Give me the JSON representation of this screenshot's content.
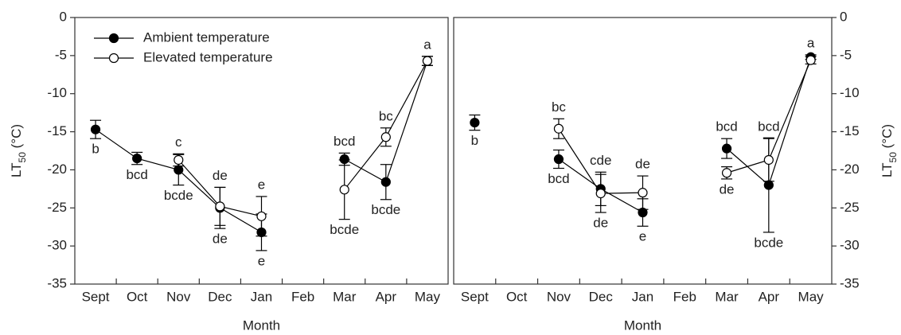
{
  "chart_data": [
    {
      "type": "line",
      "categories": [
        "Sept",
        "Oct",
        "Nov",
        "Dec",
        "Jan",
        "Feb",
        "Mar",
        "Apr",
        "May"
      ],
      "xlabel": "Month",
      "ylabel": [
        "LT",
        "50",
        " (°C)"
      ],
      "yaxis_side": "left",
      "legend": "upper left",
      "ylim": [
        -35,
        0
      ],
      "yticks": [
        0,
        -5,
        -10,
        -15,
        -20,
        -25,
        -30,
        -35
      ],
      "series": [
        {
          "name": "Ambient temperature",
          "color": "#000000",
          "marker_fill": "#000000",
          "values": [
            -14.7,
            -18.5,
            -20,
            -25,
            -28.2,
            null,
            -18.6,
            -21.6,
            -5.7
          ],
          "errors": [
            1.2,
            0.8,
            2,
            2.7,
            2.4,
            null,
            0.8,
            2.3,
            0.6
          ],
          "labels": [
            "b",
            "bcd",
            "bcde",
            "de",
            "e",
            null,
            "bcd",
            "bcde",
            null
          ]
        },
        {
          "name": "Elevated temperature",
          "color": "#000000",
          "marker_fill": "#ffffff",
          "values": [
            null,
            null,
            -18.7,
            -24.8,
            -26.1,
            null,
            -22.6,
            -15.7,
            -5.7
          ],
          "errors": [
            null,
            null,
            0.8,
            2.5,
            2.6,
            null,
            3.9,
            1.2,
            0.6
          ],
          "labels": [
            null,
            null,
            "c",
            "de",
            "e",
            null,
            "bcde",
            "bc",
            "a"
          ]
        }
      ]
    },
    {
      "type": "line",
      "categories": [
        "Sept",
        "Oct",
        "Nov",
        "Dec",
        "Jan",
        "Feb",
        "Mar",
        "Apr",
        "May"
      ],
      "xlabel": "Month",
      "ylabel": [
        "LT",
        "50",
        " (°C)"
      ],
      "yaxis_side": "right",
      "ylim": [
        -35,
        0
      ],
      "yticks": [
        0,
        -5,
        -10,
        -15,
        -20,
        -25,
        -30,
        -35
      ],
      "series": [
        {
          "color": "#000000",
          "marker_fill": "#000000",
          "values": [
            -13.8,
            null,
            -18.6,
            -22.5,
            -25.6,
            null,
            -17.2,
            -22,
            -5.2
          ],
          "errors": [
            1,
            null,
            1.2,
            2.2,
            1.8,
            null,
            1.3,
            6.2,
            0.3
          ],
          "labels": [
            "b",
            null,
            "bcd",
            "cde",
            "e",
            null,
            "bcd",
            "bcde",
            "a"
          ]
        },
        {
          "color": "#000000",
          "marker_fill": "#ffffff",
          "values": [
            null,
            null,
            -14.6,
            -23.1,
            -23,
            null,
            -20.4,
            -18.7,
            -5.6
          ],
          "errors": [
            null,
            null,
            1.3,
            2.5,
            2.2,
            null,
            0.8,
            2.8,
            0.5
          ],
          "labels": [
            null,
            null,
            "bc",
            "de",
            "de",
            null,
            "de",
            "bcd",
            null
          ]
        }
      ]
    }
  ]
}
